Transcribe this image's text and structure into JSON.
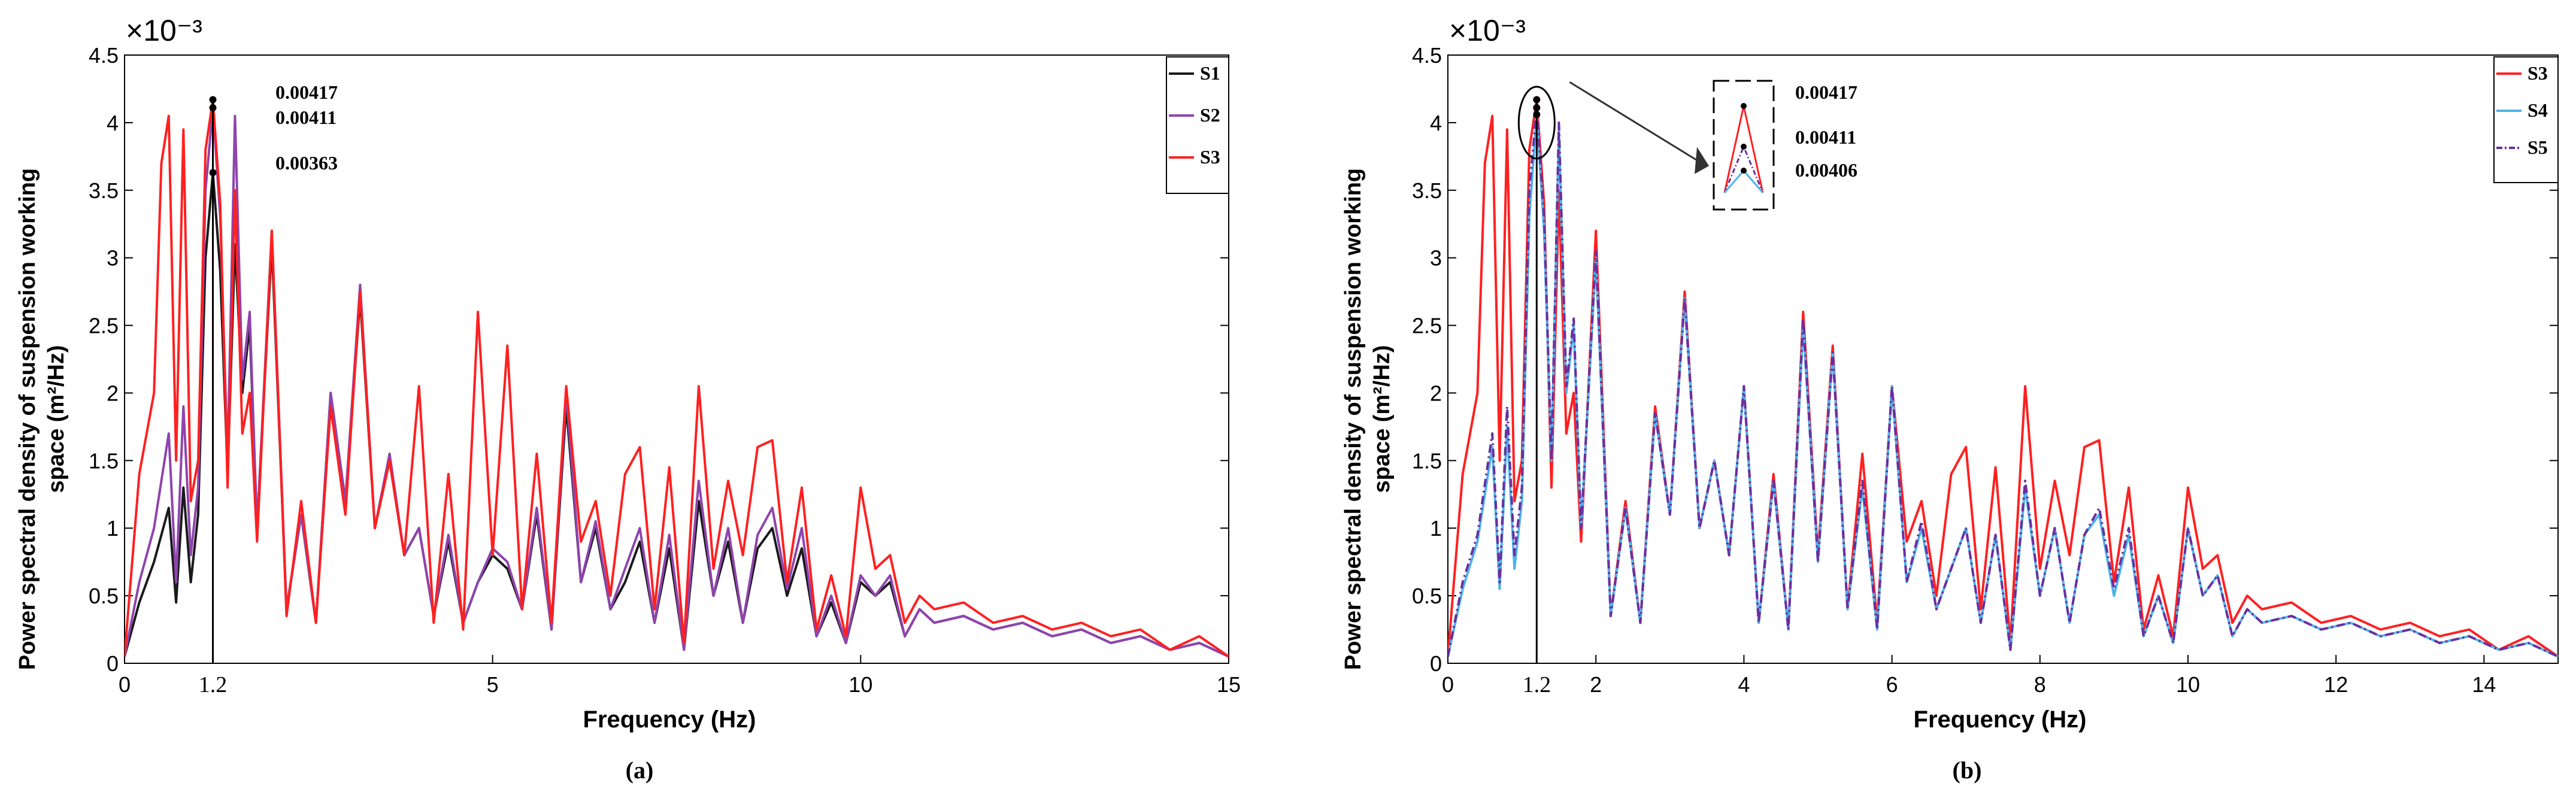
{
  "chart_data": [
    {
      "type": "line",
      "panel_label": "(a)",
      "exponent_label": "×10⁻³",
      "xlabel": "Frequency (Hz)",
      "ylabel_lines": [
        "Power spectral density of suspension working",
        "space (m²/Hz)"
      ],
      "xlim": [
        0,
        15
      ],
      "ylim": [
        0,
        4.5
      ],
      "x_ticks": [
        0,
        5,
        10,
        15
      ],
      "x_tick_labels": [
        "0",
        "5",
        "10",
        "15"
      ],
      "extra_tick": {
        "x": 1.2,
        "label": "1.2"
      },
      "y_ticks": [
        0,
        0.5,
        1,
        1.5,
        2,
        2.5,
        3,
        3.5,
        4,
        4.5
      ],
      "y_tick_labels": [
        "0",
        "0.5",
        "1",
        "1.5",
        "2",
        "2.5",
        "3",
        "3.5",
        "4",
        "4.5"
      ],
      "marker_line_x": 1.2,
      "peak_annotations": [
        {
          "x": 1.2,
          "y": 4.17,
          "label": "0.00417"
        },
        {
          "x": 1.2,
          "y": 4.11,
          "label": "0.00411"
        },
        {
          "x": 1.2,
          "y": 3.63,
          "label": "0.00363"
        }
      ],
      "legend_position": "top-right",
      "series": [
        {
          "name": "S1",
          "color": "#1a1a1a",
          "style": "solid",
          "x": [
            0,
            0.2,
            0.4,
            0.6,
            0.7,
            0.8,
            0.9,
            1.0,
            1.1,
            1.2,
            1.3,
            1.4,
            1.5,
            1.6,
            1.7,
            1.8,
            2.0,
            2.2,
            2.4,
            2.6,
            2.8,
            3.0,
            3.2,
            3.4,
            3.6,
            3.8,
            4.0,
            4.2,
            4.4,
            4.6,
            4.8,
            5.0,
            5.2,
            5.4,
            5.6,
            5.8,
            6.0,
            6.2,
            6.4,
            6.6,
            6.8,
            7.0,
            7.2,
            7.4,
            7.6,
            7.8,
            8.0,
            8.2,
            8.4,
            8.6,
            8.8,
            9.0,
            9.2,
            9.4,
            9.6,
            9.8,
            10.0,
            10.2,
            10.4,
            10.6,
            10.8,
            11.0,
            11.4,
            11.8,
            12.2,
            12.6,
            13.0,
            13.4,
            13.8,
            14.2,
            14.6,
            15.0
          ],
          "values": [
            0.05,
            0.45,
            0.75,
            1.15,
            0.45,
            1.3,
            0.6,
            1.1,
            3.0,
            3.63,
            2.9,
            1.4,
            3.1,
            2.0,
            2.5,
            1.0,
            3.1,
            0.4,
            1.1,
            0.3,
            2.0,
            1.2,
            2.7,
            1.0,
            1.5,
            0.8,
            1.0,
            0.35,
            0.9,
            0.3,
            0.6,
            0.8,
            0.7,
            0.4,
            1.1,
            0.25,
            1.9,
            0.6,
            1.0,
            0.4,
            0.6,
            0.9,
            0.3,
            0.85,
            0.1,
            1.2,
            0.5,
            0.9,
            0.3,
            0.85,
            1.0,
            0.5,
            0.85,
            0.2,
            0.45,
            0.15,
            0.6,
            0.5,
            0.6,
            0.2,
            0.4,
            0.3,
            0.35,
            0.25,
            0.3,
            0.2,
            0.25,
            0.15,
            0.2,
            0.1,
            0.15,
            0.05
          ]
        },
        {
          "name": "S2",
          "color": "#8e44ad",
          "style": "solid",
          "x": [
            0,
            0.2,
            0.4,
            0.6,
            0.7,
            0.8,
            0.9,
            1.0,
            1.1,
            1.2,
            1.3,
            1.4,
            1.5,
            1.6,
            1.7,
            1.8,
            2.0,
            2.2,
            2.4,
            2.6,
            2.8,
            3.0,
            3.2,
            3.4,
            3.6,
            3.8,
            4.0,
            4.2,
            4.4,
            4.6,
            4.8,
            5.0,
            5.2,
            5.4,
            5.6,
            5.8,
            6.0,
            6.2,
            6.4,
            6.6,
            6.8,
            7.0,
            7.2,
            7.4,
            7.6,
            7.8,
            8.0,
            8.2,
            8.4,
            8.6,
            8.8,
            9.0,
            9.2,
            9.4,
            9.6,
            9.8,
            10.0,
            10.2,
            10.4,
            10.6,
            10.8,
            11.0,
            11.4,
            11.8,
            12.2,
            12.6,
            13.0,
            13.4,
            13.8,
            14.2,
            14.6,
            15.0
          ],
          "values": [
            0.05,
            0.6,
            1.0,
            1.7,
            0.6,
            1.9,
            0.8,
            1.3,
            3.5,
            4.11,
            3.3,
            1.5,
            4.05,
            2.1,
            2.6,
            1.0,
            3.2,
            0.4,
            1.1,
            0.3,
            2.0,
            1.2,
            2.8,
            1.0,
            1.55,
            0.8,
            1.0,
            0.35,
            0.95,
            0.3,
            0.6,
            0.85,
            0.75,
            0.4,
            1.15,
            0.25,
            2.0,
            0.6,
            1.05,
            0.4,
            0.7,
            1.0,
            0.3,
            0.95,
            0.1,
            1.35,
            0.5,
            1.0,
            0.3,
            0.95,
            1.15,
            0.55,
            1.0,
            0.2,
            0.5,
            0.15,
            0.65,
            0.5,
            0.65,
            0.2,
            0.4,
            0.3,
            0.35,
            0.25,
            0.3,
            0.2,
            0.25,
            0.15,
            0.2,
            0.1,
            0.15,
            0.05
          ]
        },
        {
          "name": "S3",
          "color": "#ff2020",
          "style": "solid",
          "x": [
            0,
            0.2,
            0.4,
            0.5,
            0.6,
            0.7,
            0.8,
            0.9,
            1.0,
            1.1,
            1.2,
            1.3,
            1.4,
            1.5,
            1.6,
            1.7,
            1.8,
            2.0,
            2.2,
            2.4,
            2.6,
            2.8,
            3.0,
            3.2,
            3.4,
            3.6,
            3.8,
            4.0,
            4.2,
            4.4,
            4.6,
            4.8,
            5.0,
            5.2,
            5.4,
            5.6,
            5.8,
            6.0,
            6.2,
            6.4,
            6.6,
            6.8,
            7.0,
            7.2,
            7.4,
            7.6,
            7.8,
            8.0,
            8.2,
            8.4,
            8.6,
            8.8,
            9.0,
            9.2,
            9.4,
            9.6,
            9.8,
            10.0,
            10.2,
            10.4,
            10.6,
            10.8,
            11.0,
            11.4,
            11.8,
            12.2,
            12.6,
            13.0,
            13.4,
            13.8,
            14.2,
            14.6,
            15.0
          ],
          "values": [
            0.05,
            1.4,
            2.0,
            3.7,
            4.05,
            1.5,
            3.95,
            1.2,
            1.5,
            3.8,
            4.17,
            3.4,
            1.3,
            3.5,
            1.7,
            2.0,
            0.9,
            3.2,
            0.35,
            1.2,
            0.3,
            1.9,
            1.1,
            2.75,
            1.0,
            1.5,
            0.8,
            2.05,
            0.3,
            1.4,
            0.25,
            2.6,
            0.8,
            2.35,
            0.4,
            1.55,
            0.3,
            2.05,
            0.9,
            1.2,
            0.5,
            1.4,
            1.6,
            0.4,
            1.45,
            0.15,
            2.05,
            0.7,
            1.35,
            0.8,
            1.6,
            1.65,
            0.6,
            1.3,
            0.25,
            0.65,
            0.2,
            1.3,
            0.7,
            0.8,
            0.3,
            0.5,
            0.4,
            0.45,
            0.3,
            0.35,
            0.25,
            0.3,
            0.2,
            0.25,
            0.1,
            0.2,
            0.05
          ]
        }
      ]
    },
    {
      "type": "line",
      "panel_label": "(b)",
      "exponent_label": "×10⁻³",
      "xlabel": "Frequency (Hz)",
      "ylabel_lines": [
        "Power spectral density of suspension working",
        "space (m²/Hz)"
      ],
      "xlim": [
        0,
        15
      ],
      "ylim": [
        0,
        4.5
      ],
      "x_ticks": [
        0,
        2,
        4,
        6,
        8,
        10,
        12,
        14
      ],
      "x_tick_labels": [
        "0",
        "2",
        "4",
        "6",
        "8",
        "10",
        "12",
        "14"
      ],
      "extra_tick": {
        "x": 1.2,
        "label": "1.2"
      },
      "y_ticks": [
        0,
        0.5,
        1,
        1.5,
        2,
        2.5,
        3,
        3.5,
        4,
        4.5
      ],
      "y_tick_labels": [
        "0",
        "0.5",
        "1",
        "1.5",
        "2",
        "2.5",
        "3",
        "3.5",
        "4",
        "4.5"
      ],
      "marker_line_x": 1.2,
      "peak_annotations": [
        {
          "x": 1.2,
          "y": 4.17,
          "label": "0.00417"
        },
        {
          "x": 1.2,
          "y": 4.11,
          "label": "0.00411"
        },
        {
          "x": 1.2,
          "y": 4.06,
          "label": "0.00406"
        }
      ],
      "legend_position": "top-right",
      "series": [
        {
          "name": "S3",
          "color": "#ff2020",
          "style": "solid",
          "x": [
            0,
            0.2,
            0.4,
            0.5,
            0.6,
            0.7,
            0.8,
            0.9,
            1.0,
            1.1,
            1.2,
            1.3,
            1.4,
            1.5,
            1.6,
            1.7,
            1.8,
            2.0,
            2.2,
            2.4,
            2.6,
            2.8,
            3.0,
            3.2,
            3.4,
            3.6,
            3.8,
            4.0,
            4.2,
            4.4,
            4.6,
            4.8,
            5.0,
            5.2,
            5.4,
            5.6,
            5.8,
            6.0,
            6.2,
            6.4,
            6.6,
            6.8,
            7.0,
            7.2,
            7.4,
            7.6,
            7.8,
            8.0,
            8.2,
            8.4,
            8.6,
            8.8,
            9.0,
            9.2,
            9.4,
            9.6,
            9.8,
            10.0,
            10.2,
            10.4,
            10.6,
            10.8,
            11.0,
            11.4,
            11.8,
            12.2,
            12.6,
            13.0,
            13.4,
            13.8,
            14.2,
            14.6,
            15.0
          ],
          "values": [
            0.05,
            1.4,
            2.0,
            3.7,
            4.05,
            1.5,
            3.95,
            1.2,
            1.5,
            3.8,
            4.17,
            3.4,
            1.3,
            3.5,
            1.7,
            2.0,
            0.9,
            3.2,
            0.35,
            1.2,
            0.3,
            1.9,
            1.1,
            2.75,
            1.0,
            1.5,
            0.8,
            2.05,
            0.3,
            1.4,
            0.25,
            2.6,
            0.8,
            2.35,
            0.4,
            1.55,
            0.3,
            2.05,
            0.9,
            1.2,
            0.5,
            1.4,
            1.6,
            0.4,
            1.45,
            0.15,
            2.05,
            0.7,
            1.35,
            0.8,
            1.6,
            1.65,
            0.6,
            1.3,
            0.25,
            0.65,
            0.2,
            1.3,
            0.7,
            0.8,
            0.3,
            0.5,
            0.4,
            0.45,
            0.3,
            0.35,
            0.25,
            0.3,
            0.2,
            0.25,
            0.1,
            0.2,
            0.05
          ]
        },
        {
          "name": "S4",
          "color": "#4fb3e8",
          "style": "solid",
          "x": [
            0,
            0.2,
            0.4,
            0.6,
            0.7,
            0.8,
            0.9,
            1.0,
            1.1,
            1.2,
            1.3,
            1.4,
            1.5,
            1.6,
            1.7,
            1.8,
            2.0,
            2.2,
            2.4,
            2.6,
            2.8,
            3.0,
            3.2,
            3.4,
            3.6,
            3.8,
            4.0,
            4.2,
            4.4,
            4.6,
            4.8,
            5.0,
            5.2,
            5.4,
            5.6,
            5.8,
            6.0,
            6.2,
            6.4,
            6.6,
            6.8,
            7.0,
            7.2,
            7.4,
            7.6,
            7.8,
            8.0,
            8.2,
            8.4,
            8.6,
            8.8,
            9.0,
            9.2,
            9.4,
            9.6,
            9.8,
            10.0,
            10.2,
            10.4,
            10.6,
            10.8,
            11.0,
            11.4,
            11.8,
            12.2,
            12.6,
            13.0,
            13.4,
            13.8,
            14.2,
            14.6,
            15.0
          ],
          "values": [
            0.05,
            0.55,
            0.9,
            1.6,
            0.55,
            1.75,
            0.7,
            1.2,
            3.3,
            4.06,
            3.2,
            1.5,
            3.95,
            2.0,
            2.5,
            1.0,
            3.0,
            0.35,
            1.15,
            0.3,
            1.85,
            1.1,
            2.7,
            1.0,
            1.5,
            0.8,
            2.05,
            0.3,
            1.35,
            0.25,
            2.5,
            0.75,
            2.3,
            0.4,
            1.3,
            0.25,
            2.05,
            0.6,
            1.0,
            0.4,
            0.7,
            1.0,
            0.3,
            0.95,
            0.1,
            1.3,
            0.5,
            1.0,
            0.3,
            0.95,
            1.1,
            0.5,
            0.95,
            0.2,
            0.5,
            0.15,
            1.0,
            0.5,
            0.65,
            0.2,
            0.4,
            0.3,
            0.35,
            0.25,
            0.3,
            0.2,
            0.25,
            0.15,
            0.2,
            0.1,
            0.15,
            0.05
          ]
        },
        {
          "name": "S5",
          "color": "#6a2fa0",
          "style": "dashdot",
          "x": [
            0,
            0.2,
            0.4,
            0.6,
            0.7,
            0.8,
            0.9,
            1.0,
            1.1,
            1.2,
            1.3,
            1.4,
            1.5,
            1.6,
            1.7,
            1.8,
            2.0,
            2.2,
            2.4,
            2.6,
            2.8,
            3.0,
            3.2,
            3.4,
            3.6,
            3.8,
            4.0,
            4.2,
            4.4,
            4.6,
            4.8,
            5.0,
            5.2,
            5.4,
            5.6,
            5.8,
            6.0,
            6.2,
            6.4,
            6.6,
            6.8,
            7.0,
            7.2,
            7.4,
            7.6,
            7.8,
            8.0,
            8.2,
            8.4,
            8.6,
            8.8,
            9.0,
            9.2,
            9.4,
            9.6,
            9.8,
            10.0,
            10.2,
            10.4,
            10.6,
            10.8,
            11.0,
            11.4,
            11.8,
            12.2,
            12.6,
            13.0,
            13.4,
            13.8,
            14.2,
            14.6,
            15.0
          ],
          "values": [
            0.05,
            0.6,
            0.95,
            1.7,
            0.6,
            1.9,
            0.8,
            1.3,
            3.5,
            4.11,
            3.3,
            1.5,
            4.0,
            2.05,
            2.55,
            1.0,
            3.05,
            0.35,
            1.15,
            0.3,
            1.85,
            1.1,
            2.7,
            1.0,
            1.5,
            0.8,
            2.05,
            0.3,
            1.35,
            0.25,
            2.55,
            0.75,
            2.3,
            0.4,
            1.35,
            0.25,
            2.05,
            0.6,
            1.05,
            0.4,
            0.7,
            1.0,
            0.3,
            0.95,
            0.1,
            1.35,
            0.5,
            1.0,
            0.3,
            0.95,
            1.15,
            0.55,
            1.0,
            0.2,
            0.5,
            0.15,
            1.0,
            0.5,
            0.65,
            0.2,
            0.4,
            0.3,
            0.35,
            0.25,
            0.3,
            0.2,
            0.25,
            0.15,
            0.2,
            0.1,
            0.15,
            0.05
          ]
        }
      ]
    }
  ]
}
